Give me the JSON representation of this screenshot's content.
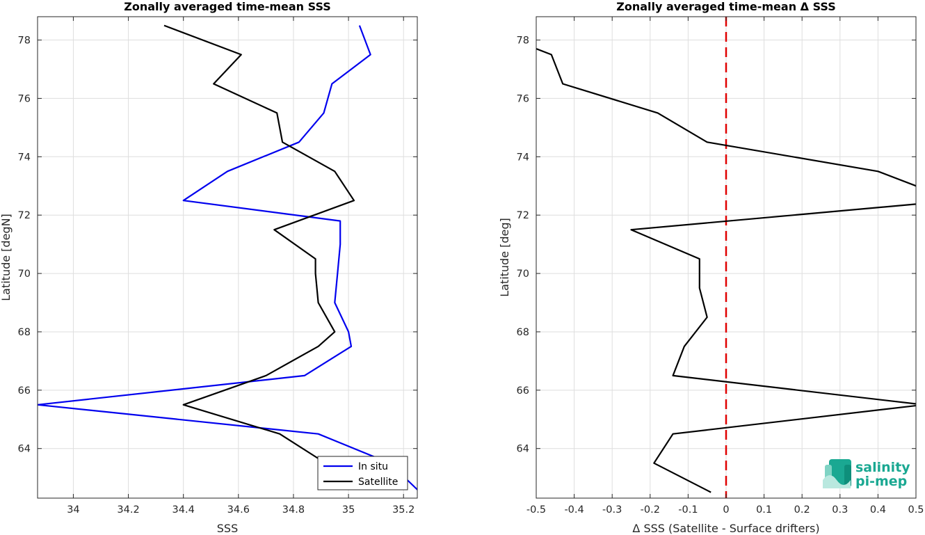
{
  "chart_data": [
    {
      "type": "line",
      "title": "Zonally averaged time-mean SSS",
      "xlabel": "SSS",
      "ylabel": "Latitude [degN]",
      "xlim": [
        33.87,
        35.25
      ],
      "ylim": [
        62.3,
        78.8
      ],
      "xticks": [
        34,
        34.2,
        34.4,
        34.6,
        34.8,
        35,
        35.2
      ],
      "xtick_labels": [
        "34",
        "34.2",
        "34.4",
        "34.6",
        "34.8",
        "35",
        "35.2"
      ],
      "yticks": [
        64,
        66,
        68,
        70,
        72,
        74,
        76,
        78
      ],
      "ytick_labels": [
        "64",
        "66",
        "68",
        "70",
        "72",
        "74",
        "76",
        "78"
      ],
      "grid": true,
      "legend_position": "bottom-right",
      "series": [
        {
          "name": "In situ",
          "color": "#0000ee",
          "points": [
            [
              35.26,
              62.5
            ],
            [
              35.15,
              63.5
            ],
            [
              34.89,
              64.5
            ],
            [
              33.87,
              65.5
            ],
            [
              34.84,
              66.5
            ],
            [
              35.01,
              67.5
            ],
            [
              35.0,
              68.0
            ],
            [
              34.95,
              69.0
            ],
            [
              34.96,
              70.0
            ],
            [
              34.97,
              71.0
            ],
            [
              34.97,
              71.8
            ],
            [
              34.4,
              72.5
            ],
            [
              34.56,
              73.5
            ],
            [
              34.82,
              74.5
            ],
            [
              34.91,
              75.5
            ],
            [
              34.94,
              76.5
            ],
            [
              35.08,
              77.5
            ],
            [
              35.04,
              78.5
            ]
          ]
        },
        {
          "name": "Satellite",
          "color": "#000000",
          "points": [
            [
              35.2,
              62.6
            ],
            [
              34.9,
              63.6
            ],
            [
              34.75,
              64.5
            ],
            [
              34.4,
              65.5
            ],
            [
              34.7,
              66.5
            ],
            [
              34.89,
              67.5
            ],
            [
              34.95,
              68.0
            ],
            [
              34.89,
              69.0
            ],
            [
              34.88,
              70.0
            ],
            [
              34.88,
              70.5
            ],
            [
              34.73,
              71.5
            ],
            [
              35.02,
              72.5
            ],
            [
              34.95,
              73.5
            ],
            [
              34.76,
              74.5
            ],
            [
              34.74,
              75.5
            ],
            [
              34.51,
              76.5
            ],
            [
              34.61,
              77.5
            ],
            [
              34.33,
              78.5
            ]
          ]
        }
      ]
    },
    {
      "type": "line",
      "title": "Zonally averaged time-mean Δ SSS",
      "xlabel": "Δ SSS (Satellite - Surface drifters)",
      "ylabel": "Latitude [deg]",
      "xlim": [
        -0.5,
        0.5
      ],
      "ylim": [
        62.3,
        78.8
      ],
      "xticks": [
        -0.5,
        -0.4,
        -0.3,
        -0.2,
        -0.1,
        0,
        0.1,
        0.2,
        0.3,
        0.4,
        0.5
      ],
      "xtick_labels": [
        "-0.5",
        "-0.4",
        "-0.3",
        "-0.2",
        "-0.1",
        "0",
        "0.1",
        "0.2",
        "0.3",
        "0.4",
        "0.5"
      ],
      "yticks": [
        64,
        66,
        68,
        70,
        72,
        74,
        76,
        78
      ],
      "ytick_labels": [
        "64",
        "66",
        "68",
        "70",
        "72",
        "74",
        "76",
        "78"
      ],
      "grid": true,
      "reference_line": {
        "x": 0,
        "color": "#e00000",
        "style": "dashed"
      },
      "series": [
        {
          "color": "#000000",
          "points": [
            [
              -0.04,
              62.5
            ],
            [
              -0.19,
              63.5
            ],
            [
              -0.14,
              64.5
            ],
            [
              0.52,
              65.5
            ],
            [
              -0.14,
              66.5
            ],
            [
              -0.11,
              67.5
            ],
            [
              -0.05,
              68.5
            ],
            [
              -0.07,
              69.5
            ],
            [
              -0.07,
              70.5
            ],
            [
              -0.25,
              71.5
            ],
            [
              0.52,
              72.4
            ],
            [
              0.5,
              73.0
            ],
            [
              0.4,
              73.5
            ],
            [
              -0.05,
              74.5
            ],
            [
              -0.18,
              75.5
            ],
            [
              -0.43,
              76.5
            ],
            [
              -0.46,
              77.5
            ],
            [
              -0.52,
              77.8
            ]
          ]
        }
      ]
    }
  ],
  "logo": {
    "line1": "salinity",
    "line2": "pi-mep",
    "color": "#1aa892"
  }
}
